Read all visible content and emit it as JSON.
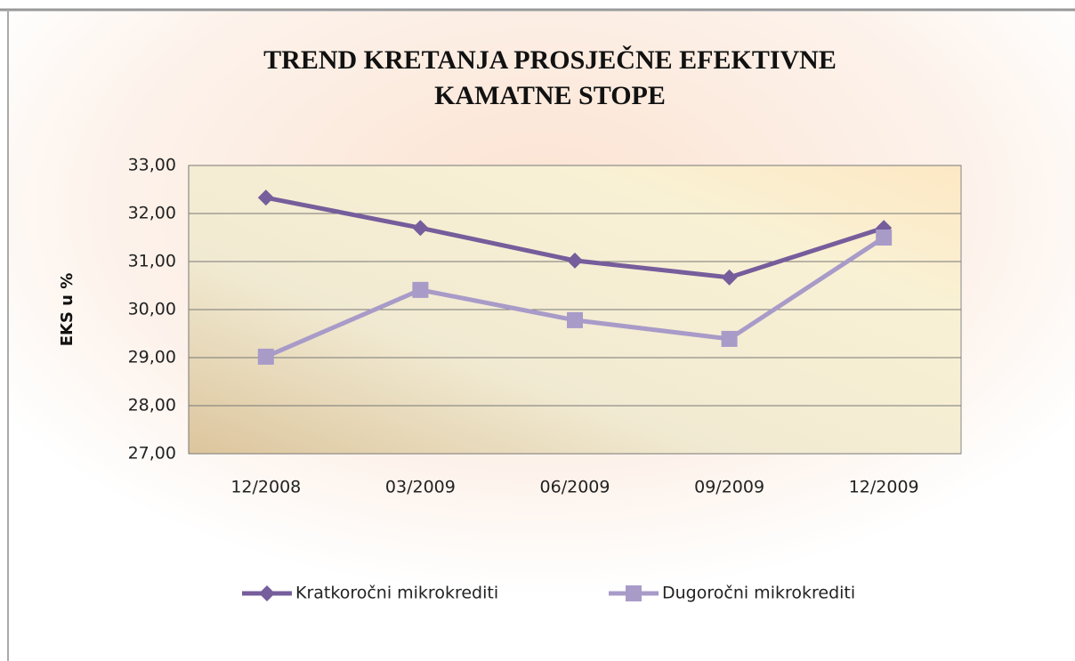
{
  "chart_data": {
    "type": "line",
    "title": [
      "TREND KRETANJA PROSJEČNE EFEKTIVNE",
      "KAMATNE STOPE"
    ],
    "y_label": "EKS u %",
    "categories": [
      "12/2008",
      "03/2009",
      "06/2009",
      "09/2009",
      "12/2009"
    ],
    "series": [
      {
        "name": "Kratkoročni mikrokrediti",
        "color": "#765d9b",
        "marker": "diamond",
        "values": [
          32.33,
          31.7,
          31.02,
          30.67,
          31.7
        ]
      },
      {
        "name": "Dugoročni mikrokrediti",
        "color": "#a89bc8",
        "marker": "square",
        "values": [
          29.02,
          30.41,
          29.78,
          29.39,
          31.5
        ]
      }
    ],
    "ylim": [
      27,
      33
    ],
    "yticks": [
      {
        "value": 27,
        "label": "27,00"
      },
      {
        "value": 28,
        "label": "28,00"
      },
      {
        "value": 29,
        "label": "29,00"
      },
      {
        "value": 30,
        "label": "30,00"
      },
      {
        "value": 31,
        "label": "31,00"
      },
      {
        "value": 32,
        "label": "32,00"
      },
      {
        "value": 33,
        "label": "33,00"
      }
    ],
    "grid": true,
    "legend": "bottom"
  }
}
